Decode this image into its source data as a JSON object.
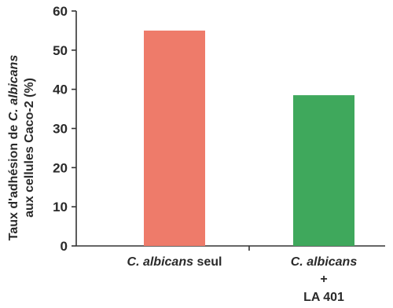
{
  "chart_data": {
    "type": "bar",
    "ylabel_line1_prefix": "Taux d'adhésion de ",
    "ylabel_line1_species": "C. albicans",
    "ylabel_line2": "aux cellules Caco-2 (%)",
    "ylim": [
      0,
      60
    ],
    "yticks": [
      "0",
      "10",
      "20",
      "30",
      "40",
      "50",
      "60"
    ],
    "categories": [
      {
        "species": "C. albicans",
        "suffix": " seul",
        "plus": "",
        "strain": ""
      },
      {
        "species": "C. albicans",
        "suffix": "",
        "plus": "+",
        "strain": "LA 401"
      }
    ],
    "values": [
      55,
      38.5
    ],
    "colors": [
      "#ee7b6a",
      "#3fa85c"
    ],
    "grid": false,
    "legend": "none"
  }
}
